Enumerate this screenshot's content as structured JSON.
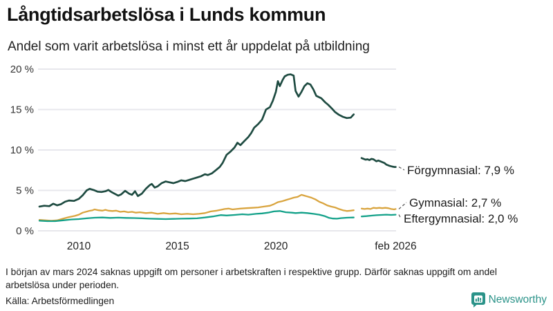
{
  "header": {
    "title": "Långtidsarbetslösa i Lunds kommun",
    "subtitle": "Andel som varit arbetslösa i minst ett år uppdelat på utbildning"
  },
  "footer": {
    "note": "I början av mars 2024 saknas uppgift om personer i arbetskraften i respektive grupp. Därför saknas uppgift om andel arbetslösa under perioden.",
    "source": "Källa: Arbetsförmedlingen",
    "brand": "Newsworthy",
    "brand_color": "#2b9389"
  },
  "chart_data": {
    "type": "line",
    "title": "Långtidsarbetslösa i Lunds kommun",
    "subtitle": "Andel som varit arbetslösa i minst ett år uppdelat på utbildning",
    "xlabel": "",
    "ylabel": "",
    "grid": true,
    "x_domain": [
      2008.0,
      2026.17
    ],
    "y_domain": [
      0,
      20
    ],
    "colors": {
      "grid": "#e7e7ec",
      "axis_text": "#333333",
      "connector": "#555555"
    },
    "y_ticks": [
      {
        "value": 0,
        "label": "0 %"
      },
      {
        "value": 5,
        "label": "5 %"
      },
      {
        "value": 10,
        "label": "10 %"
      },
      {
        "value": 15,
        "label": "15 %"
      },
      {
        "value": 20,
        "label": "20 %"
      }
    ],
    "x_ticks": [
      {
        "value": 2010,
        "label": "2010"
      },
      {
        "value": 2015,
        "label": "2015"
      },
      {
        "value": 2020,
        "label": "2020"
      },
      {
        "value": 2026.08,
        "label": "feb 2026"
      }
    ],
    "gap_note": "data gap mars 2024",
    "series": [
      {
        "id": "forgymnasial",
        "name": "Förgymnasial",
        "end_label": "Förgymnasial: 7,9 %",
        "end_value": 7.9,
        "color": "#1e4b41",
        "segments": [
          [
            [
              2008.0,
              3.0
            ],
            [
              2008.25,
              3.1
            ],
            [
              2008.5,
              3.05
            ],
            [
              2008.7,
              3.35
            ],
            [
              2008.9,
              3.15
            ],
            [
              2009.1,
              3.3
            ],
            [
              2009.3,
              3.6
            ],
            [
              2009.5,
              3.75
            ],
            [
              2009.75,
              3.7
            ],
            [
              2010.0,
              3.95
            ],
            [
              2010.2,
              4.4
            ],
            [
              2010.4,
              5.0
            ],
            [
              2010.55,
              5.2
            ],
            [
              2010.75,
              5.05
            ],
            [
              2010.95,
              4.85
            ],
            [
              2011.15,
              4.8
            ],
            [
              2011.35,
              4.9
            ],
            [
              2011.5,
              5.05
            ],
            [
              2011.65,
              4.8
            ],
            [
              2011.85,
              4.55
            ],
            [
              2012.0,
              4.35
            ],
            [
              2012.15,
              4.5
            ],
            [
              2012.35,
              4.95
            ],
            [
              2012.55,
              4.6
            ],
            [
              2012.7,
              4.45
            ],
            [
              2012.85,
              4.9
            ],
            [
              2013.0,
              4.3
            ],
            [
              2013.2,
              4.6
            ],
            [
              2013.4,
              5.2
            ],
            [
              2013.6,
              5.65
            ],
            [
              2013.7,
              5.8
            ],
            [
              2013.85,
              5.35
            ],
            [
              2014.0,
              5.5
            ],
            [
              2014.2,
              5.9
            ],
            [
              2014.4,
              6.1
            ],
            [
              2014.6,
              6.0
            ],
            [
              2014.8,
              5.9
            ],
            [
              2015.0,
              6.05
            ],
            [
              2015.2,
              6.25
            ],
            [
              2015.4,
              6.15
            ],
            [
              2015.6,
              6.3
            ],
            [
              2015.8,
              6.45
            ],
            [
              2016.0,
              6.6
            ],
            [
              2016.2,
              6.75
            ],
            [
              2016.4,
              7.0
            ],
            [
              2016.55,
              6.9
            ],
            [
              2016.75,
              7.1
            ],
            [
              2016.95,
              7.5
            ],
            [
              2017.15,
              7.9
            ],
            [
              2017.3,
              8.4
            ],
            [
              2017.5,
              9.4
            ],
            [
              2017.7,
              9.8
            ],
            [
              2017.9,
              10.3
            ],
            [
              2018.05,
              10.9
            ],
            [
              2018.2,
              10.6
            ],
            [
              2018.4,
              11.1
            ],
            [
              2018.6,
              11.6
            ],
            [
              2018.75,
              12.1
            ],
            [
              2018.9,
              12.75
            ],
            [
              2019.1,
              13.2
            ],
            [
              2019.3,
              13.75
            ],
            [
              2019.5,
              15.0
            ],
            [
              2019.7,
              15.3
            ],
            [
              2019.85,
              16.1
            ],
            [
              2020.0,
              17.2
            ],
            [
              2020.1,
              18.5
            ],
            [
              2020.2,
              17.9
            ],
            [
              2020.35,
              18.7
            ],
            [
              2020.45,
              19.1
            ],
            [
              2020.6,
              19.3
            ],
            [
              2020.75,
              19.35
            ],
            [
              2020.9,
              19.2
            ],
            [
              2021.0,
              17.3
            ],
            [
              2021.15,
              16.6
            ],
            [
              2021.3,
              17.2
            ],
            [
              2021.45,
              17.9
            ],
            [
              2021.6,
              18.25
            ],
            [
              2021.75,
              18.1
            ],
            [
              2021.9,
              17.5
            ],
            [
              2022.05,
              16.7
            ],
            [
              2022.3,
              16.4
            ],
            [
              2022.5,
              15.9
            ],
            [
              2022.65,
              15.6
            ],
            [
              2022.85,
              15.1
            ],
            [
              2023.0,
              14.7
            ],
            [
              2023.2,
              14.35
            ],
            [
              2023.4,
              14.1
            ],
            [
              2023.6,
              13.95
            ],
            [
              2023.8,
              14.0
            ],
            [
              2023.95,
              14.4
            ]
          ],
          [
            [
              2024.35,
              9.0
            ],
            [
              2024.45,
              8.9
            ],
            [
              2024.55,
              8.8
            ],
            [
              2024.65,
              8.85
            ],
            [
              2024.75,
              8.75
            ],
            [
              2024.85,
              8.9
            ],
            [
              2024.95,
              8.85
            ],
            [
              2025.1,
              8.6
            ],
            [
              2025.2,
              8.7
            ],
            [
              2025.35,
              8.55
            ],
            [
              2025.5,
              8.4
            ],
            [
              2025.6,
              8.2
            ],
            [
              2025.75,
              8.05
            ],
            [
              2025.9,
              7.95
            ],
            [
              2026.0,
              7.9
            ],
            [
              2026.08,
              7.9
            ]
          ]
        ]
      },
      {
        "id": "gymnasial",
        "name": "Gymnasial",
        "end_label": "Gymnasial: 2,7 %",
        "end_value": 2.7,
        "color": "#d9a43e",
        "segments": [
          [
            [
              2008.0,
              1.35
            ],
            [
              2008.3,
              1.3
            ],
            [
              2008.6,
              1.25
            ],
            [
              2008.9,
              1.3
            ],
            [
              2009.2,
              1.5
            ],
            [
              2009.5,
              1.7
            ],
            [
              2009.8,
              1.85
            ],
            [
              2010.0,
              2.0
            ],
            [
              2010.2,
              2.25
            ],
            [
              2010.5,
              2.45
            ],
            [
              2010.7,
              2.55
            ],
            [
              2010.8,
              2.65
            ],
            [
              2011.0,
              2.55
            ],
            [
              2011.2,
              2.5
            ],
            [
              2011.35,
              2.6
            ],
            [
              2011.5,
              2.5
            ],
            [
              2011.7,
              2.45
            ],
            [
              2011.9,
              2.5
            ],
            [
              2012.1,
              2.35
            ],
            [
              2012.3,
              2.4
            ],
            [
              2012.5,
              2.3
            ],
            [
              2012.7,
              2.35
            ],
            [
              2012.9,
              2.25
            ],
            [
              2013.1,
              2.3
            ],
            [
              2013.4,
              2.2
            ],
            [
              2013.7,
              2.25
            ],
            [
              2014.0,
              2.1
            ],
            [
              2014.3,
              2.2
            ],
            [
              2014.6,
              2.1
            ],
            [
              2014.9,
              2.15
            ],
            [
              2015.2,
              2.05
            ],
            [
              2015.5,
              2.1
            ],
            [
              2015.8,
              2.05
            ],
            [
              2016.1,
              2.1
            ],
            [
              2016.4,
              2.2
            ],
            [
              2016.7,
              2.4
            ],
            [
              2017.0,
              2.5
            ],
            [
              2017.2,
              2.6
            ],
            [
              2017.4,
              2.7
            ],
            [
              2017.6,
              2.75
            ],
            [
              2017.8,
              2.65
            ],
            [
              2018.0,
              2.7
            ],
            [
              2018.2,
              2.75
            ],
            [
              2018.5,
              2.8
            ],
            [
              2018.8,
              2.85
            ],
            [
              2019.1,
              2.9
            ],
            [
              2019.4,
              3.0
            ],
            [
              2019.7,
              3.1
            ],
            [
              2019.9,
              3.3
            ],
            [
              2020.1,
              3.55
            ],
            [
              2020.3,
              3.65
            ],
            [
              2020.5,
              3.8
            ],
            [
              2020.7,
              3.95
            ],
            [
              2020.9,
              4.1
            ],
            [
              2021.1,
              4.2
            ],
            [
              2021.3,
              4.45
            ],
            [
              2021.45,
              4.35
            ],
            [
              2021.6,
              4.25
            ],
            [
              2021.8,
              4.1
            ],
            [
              2022.0,
              3.9
            ],
            [
              2022.2,
              3.6
            ],
            [
              2022.4,
              3.4
            ],
            [
              2022.6,
              3.15
            ],
            [
              2022.8,
              3.0
            ],
            [
              2023.0,
              2.9
            ],
            [
              2023.2,
              2.7
            ],
            [
              2023.4,
              2.55
            ],
            [
              2023.6,
              2.45
            ],
            [
              2023.8,
              2.5
            ],
            [
              2023.95,
              2.55
            ]
          ],
          [
            [
              2024.35,
              2.75
            ],
            [
              2024.5,
              2.7
            ],
            [
              2024.65,
              2.75
            ],
            [
              2024.8,
              2.7
            ],
            [
              2024.95,
              2.85
            ],
            [
              2025.1,
              2.8
            ],
            [
              2025.25,
              2.85
            ],
            [
              2025.4,
              2.8
            ],
            [
              2025.55,
              2.85
            ],
            [
              2025.7,
              2.8
            ],
            [
              2025.85,
              2.7
            ],
            [
              2026.0,
              2.65
            ],
            [
              2026.08,
              2.7
            ]
          ]
        ]
      },
      {
        "id": "eftergymnasial",
        "name": "Eftergymnasial",
        "end_label": "Eftergymnasial: 2,0 %",
        "end_value": 2.0,
        "color": "#13a189",
        "segments": [
          [
            [
              2008.0,
              1.25
            ],
            [
              2008.4,
              1.2
            ],
            [
              2008.8,
              1.2
            ],
            [
              2009.2,
              1.3
            ],
            [
              2009.6,
              1.4
            ],
            [
              2010.0,
              1.45
            ],
            [
              2010.4,
              1.55
            ],
            [
              2010.8,
              1.62
            ],
            [
              2011.2,
              1.65
            ],
            [
              2011.6,
              1.6
            ],
            [
              2012.0,
              1.63
            ],
            [
              2012.4,
              1.6
            ],
            [
              2012.8,
              1.58
            ],
            [
              2013.2,
              1.55
            ],
            [
              2013.6,
              1.5
            ],
            [
              2014.0,
              1.48
            ],
            [
              2014.4,
              1.45
            ],
            [
              2014.8,
              1.48
            ],
            [
              2015.2,
              1.5
            ],
            [
              2015.6,
              1.52
            ],
            [
              2016.0,
              1.55
            ],
            [
              2016.4,
              1.65
            ],
            [
              2016.8,
              1.78
            ],
            [
              2017.2,
              1.95
            ],
            [
              2017.5,
              1.9
            ],
            [
              2017.9,
              1.97
            ],
            [
              2018.3,
              2.05
            ],
            [
              2018.6,
              2.0
            ],
            [
              2019.0,
              2.1
            ],
            [
              2019.3,
              2.15
            ],
            [
              2019.6,
              2.25
            ],
            [
              2019.9,
              2.4
            ],
            [
              2020.2,
              2.45
            ],
            [
              2020.5,
              2.3
            ],
            [
              2020.8,
              2.25
            ],
            [
              2021.0,
              2.2
            ],
            [
              2021.3,
              2.25
            ],
            [
              2021.6,
              2.2
            ],
            [
              2021.9,
              2.1
            ],
            [
              2022.2,
              2.0
            ],
            [
              2022.5,
              1.8
            ],
            [
              2022.7,
              1.6
            ],
            [
              2022.9,
              1.52
            ],
            [
              2023.1,
              1.5
            ],
            [
              2023.3,
              1.57
            ],
            [
              2023.6,
              1.62
            ],
            [
              2023.95,
              1.65
            ]
          ],
          [
            [
              2024.35,
              1.78
            ],
            [
              2024.6,
              1.82
            ],
            [
              2024.85,
              1.88
            ],
            [
              2025.1,
              1.93
            ],
            [
              2025.35,
              1.97
            ],
            [
              2025.6,
              2.0
            ],
            [
              2025.85,
              1.97
            ],
            [
              2026.08,
              2.0
            ]
          ]
        ]
      }
    ]
  }
}
